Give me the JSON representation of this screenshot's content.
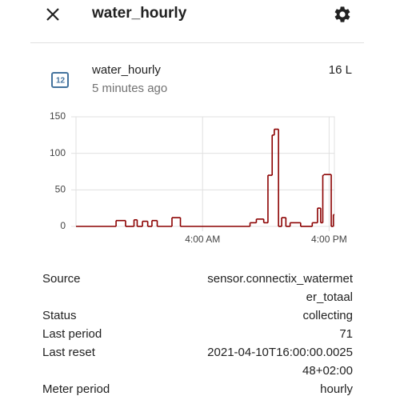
{
  "header": {
    "title": "water_hourly"
  },
  "entity": {
    "name": "water_hourly",
    "last_changed": "5 minutes ago",
    "state": "16 L"
  },
  "chart_data": {
    "type": "line",
    "step": true,
    "color": "#8b0000",
    "grid": true,
    "x": [
      0,
      3.8,
      4.7,
      5.5,
      5.8,
      6.3,
      6.8,
      7.2,
      7.7,
      9.1,
      9.9,
      16.5,
      17.1,
      17.8,
      18.2,
      18.6,
      18.8,
      19.2,
      19.5,
      19.9,
      20.3,
      21.3,
      22.4,
      22.9,
      23.2,
      23.4,
      23.5,
      24.2,
      24.4
    ],
    "series": [
      {
        "name": "water_hourly",
        "color": "#8b0000",
        "values": [
          0,
          8,
          0,
          9,
          0,
          7,
          0,
          8,
          0,
          12,
          0,
          5,
          10,
          5,
          70,
          125,
          133,
          0,
          12,
          0,
          5,
          0,
          5,
          25,
          5,
          70,
          71,
          0,
          16
        ]
      }
    ],
    "xlim": [
      0,
      24.5
    ],
    "xticks": [
      {
        "value": 12,
        "label": "4:00 AM"
      },
      {
        "value": 24,
        "label": "4:00 PM"
      }
    ],
    "ylim": [
      0,
      150
    ],
    "yticks": [
      0,
      50,
      100,
      150
    ]
  },
  "attributes": [
    {
      "label": "Source",
      "value": "sensor.connectix_watermeter_totaal"
    },
    {
      "label": "Status",
      "value": "collecting"
    },
    {
      "label": "Last period",
      "value": "71"
    },
    {
      "label": "Last reset",
      "value": "2021-04-10T16:00:00.002548+02:00"
    },
    {
      "label": "Meter period",
      "value": "hourly"
    }
  ]
}
